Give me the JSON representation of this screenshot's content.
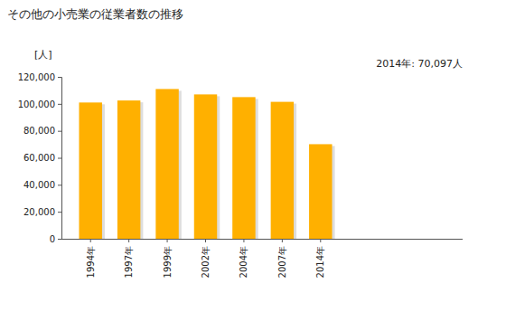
{
  "chart_data": {
    "type": "bar",
    "title": "その他の小売業の従業者数の推移",
    "y_label": "[人]",
    "annotation": "2014年: 70,097人",
    "categories": [
      "1994年",
      "1997年",
      "1999年",
      "2002年",
      "2004年",
      "2007年",
      "2014年"
    ],
    "values": [
      101000,
      102500,
      111000,
      107000,
      105000,
      101500,
      70097
    ],
    "color": "#ffb000",
    "ylim": [
      0,
      120000
    ],
    "yticks": [
      0,
      {
        "value": 20000,
        "label": "20,000"
      },
      {
        "value": 40000,
        "label": "40,000"
      },
      {
        "value": 60000,
        "label": "60,000"
      },
      {
        "value": 80000,
        "label": "80,000"
      },
      {
        "value": 100000,
        "label": "100,000"
      },
      {
        "value": 120000,
        "label": "120,000"
      }
    ],
    "grid": false
  }
}
